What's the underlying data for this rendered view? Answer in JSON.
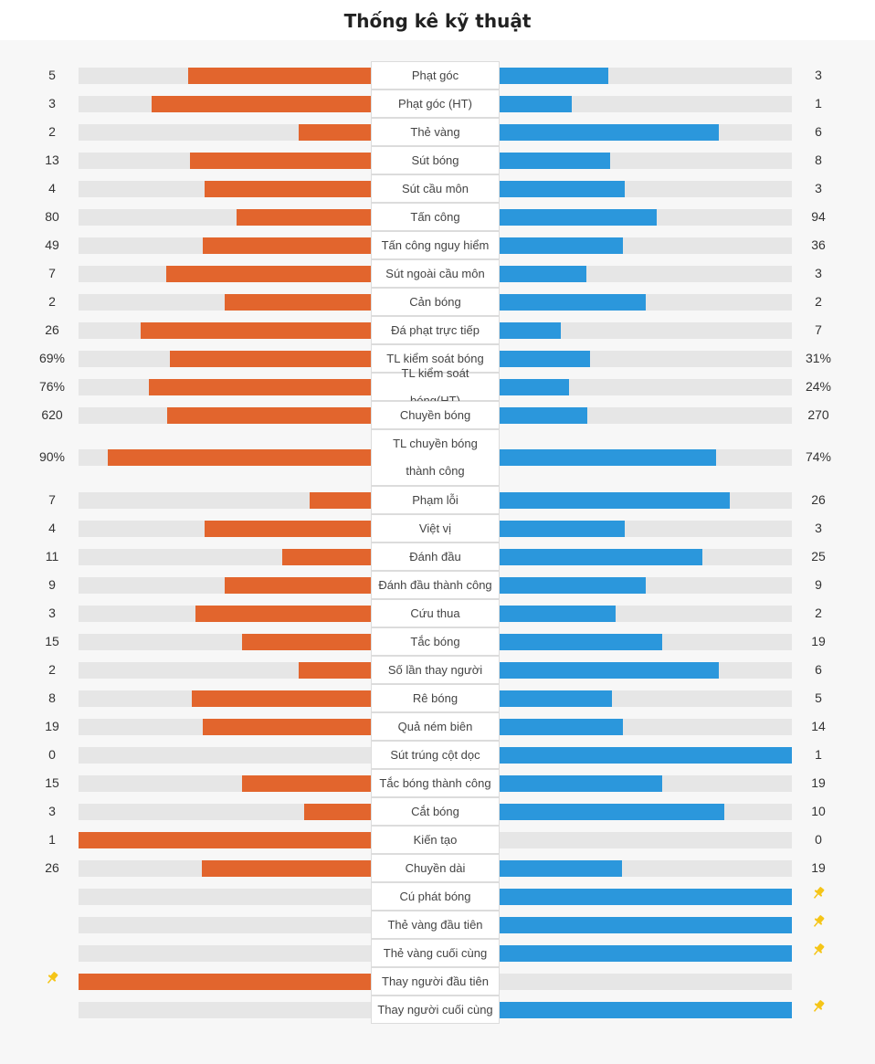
{
  "title": "Thống kê kỹ thuật",
  "colors": {
    "home": "#e2652d",
    "away": "#2b97dc",
    "track": "#e6e6e6",
    "pin": "#f5c518"
  },
  "stats": [
    {
      "label": "Phạt góc",
      "home": "5",
      "away": "3",
      "home_ratio": 0.625,
      "away_ratio": 0.375
    },
    {
      "label": "Phạt góc (HT)",
      "home": "3",
      "away": "1",
      "home_ratio": 0.75,
      "away_ratio": 0.25
    },
    {
      "label": "Thẻ vàng",
      "home": "2",
      "away": "6",
      "home_ratio": 0.25,
      "away_ratio": 0.75
    },
    {
      "label": "Sút bóng",
      "home": "13",
      "away": "8",
      "home_ratio": 0.619,
      "away_ratio": 0.381
    },
    {
      "label": "Sút cầu môn",
      "home": "4",
      "away": "3",
      "home_ratio": 0.571,
      "away_ratio": 0.429
    },
    {
      "label": "Tấn công",
      "home": "80",
      "away": "94",
      "home_ratio": 0.46,
      "away_ratio": 0.54
    },
    {
      "label": "Tấn công nguy hiểm",
      "home": "49",
      "away": "36",
      "home_ratio": 0.576,
      "away_ratio": 0.424
    },
    {
      "label": "Sút ngoài cầu môn",
      "home": "7",
      "away": "3",
      "home_ratio": 0.7,
      "away_ratio": 0.3
    },
    {
      "label": "Cản bóng",
      "home": "2",
      "away": "2",
      "home_ratio": 0.5,
      "away_ratio": 0.5
    },
    {
      "label": "Đá phạt trực tiếp",
      "home": "26",
      "away": "7",
      "home_ratio": 0.788,
      "away_ratio": 0.212
    },
    {
      "label": "TL kiểm soát bóng",
      "home": "69%",
      "away": "31%",
      "home_ratio": 0.69,
      "away_ratio": 0.31
    },
    {
      "label": "TL kiểm soát bóng(HT)",
      "home": "76%",
      "away": "24%",
      "home_ratio": 0.76,
      "away_ratio": 0.24
    },
    {
      "label": "Chuyền bóng",
      "home": "620",
      "away": "270",
      "home_ratio": 0.697,
      "away_ratio": 0.303
    },
    {
      "label": "TL chuyền bóng thành công",
      "home": "90%",
      "away": "74%",
      "home_ratio": 0.9,
      "away_ratio": 0.74,
      "tall": true
    },
    {
      "label": "Phạm lỗi",
      "home": "7",
      "away": "26",
      "home_ratio": 0.212,
      "away_ratio": 0.788
    },
    {
      "label": "Việt vị",
      "home": "4",
      "away": "3",
      "home_ratio": 0.571,
      "away_ratio": 0.429
    },
    {
      "label": "Đánh đầu",
      "home": "11",
      "away": "25",
      "home_ratio": 0.306,
      "away_ratio": 0.694
    },
    {
      "label": "Đánh đầu thành công",
      "home": "9",
      "away": "9",
      "home_ratio": 0.5,
      "away_ratio": 0.5
    },
    {
      "label": "Cứu thua",
      "home": "3",
      "away": "2",
      "home_ratio": 0.6,
      "away_ratio": 0.4
    },
    {
      "label": "Tắc bóng",
      "home": "15",
      "away": "19",
      "home_ratio": 0.441,
      "away_ratio": 0.559
    },
    {
      "label": "Số lần thay người",
      "home": "2",
      "away": "6",
      "home_ratio": 0.25,
      "away_ratio": 0.75
    },
    {
      "label": "Rê bóng",
      "home": "8",
      "away": "5",
      "home_ratio": 0.615,
      "away_ratio": 0.385
    },
    {
      "label": "Quả ném biên",
      "home": "19",
      "away": "14",
      "home_ratio": 0.576,
      "away_ratio": 0.424
    },
    {
      "label": "Sút trúng cột dọc",
      "home": "0",
      "away": "1",
      "home_ratio": 0.0,
      "away_ratio": 1.0
    },
    {
      "label": "Tắc bóng thành công",
      "home": "15",
      "away": "19",
      "home_ratio": 0.441,
      "away_ratio": 0.559
    },
    {
      "label": "Cắt bóng",
      "home": "3",
      "away": "10",
      "home_ratio": 0.231,
      "away_ratio": 0.769
    },
    {
      "label": "Kiến tạo",
      "home": "1",
      "away": "0",
      "home_ratio": 1.0,
      "away_ratio": 0.0
    },
    {
      "label": "Chuyền dài",
      "home": "26",
      "away": "19",
      "home_ratio": 0.578,
      "away_ratio": 0.422
    },
    {
      "label": "Cú phát bóng",
      "home": "",
      "away": "",
      "home_ratio": 0.0,
      "away_ratio": 1.0,
      "pin": "away"
    },
    {
      "label": "Thẻ vàng đầu tiên",
      "home": "",
      "away": "",
      "home_ratio": 0.0,
      "away_ratio": 1.0,
      "pin": "away"
    },
    {
      "label": "Thẻ vàng cuối cùng",
      "home": "",
      "away": "",
      "home_ratio": 0.0,
      "away_ratio": 1.0,
      "pin": "away"
    },
    {
      "label": "Thay người đầu tiên",
      "home": "",
      "away": "",
      "home_ratio": 1.0,
      "away_ratio": 0.0,
      "pin": "home"
    },
    {
      "label": "Thay người cuối cùng",
      "home": "",
      "away": "",
      "home_ratio": 0.0,
      "away_ratio": 1.0,
      "pin": "away"
    }
  ]
}
